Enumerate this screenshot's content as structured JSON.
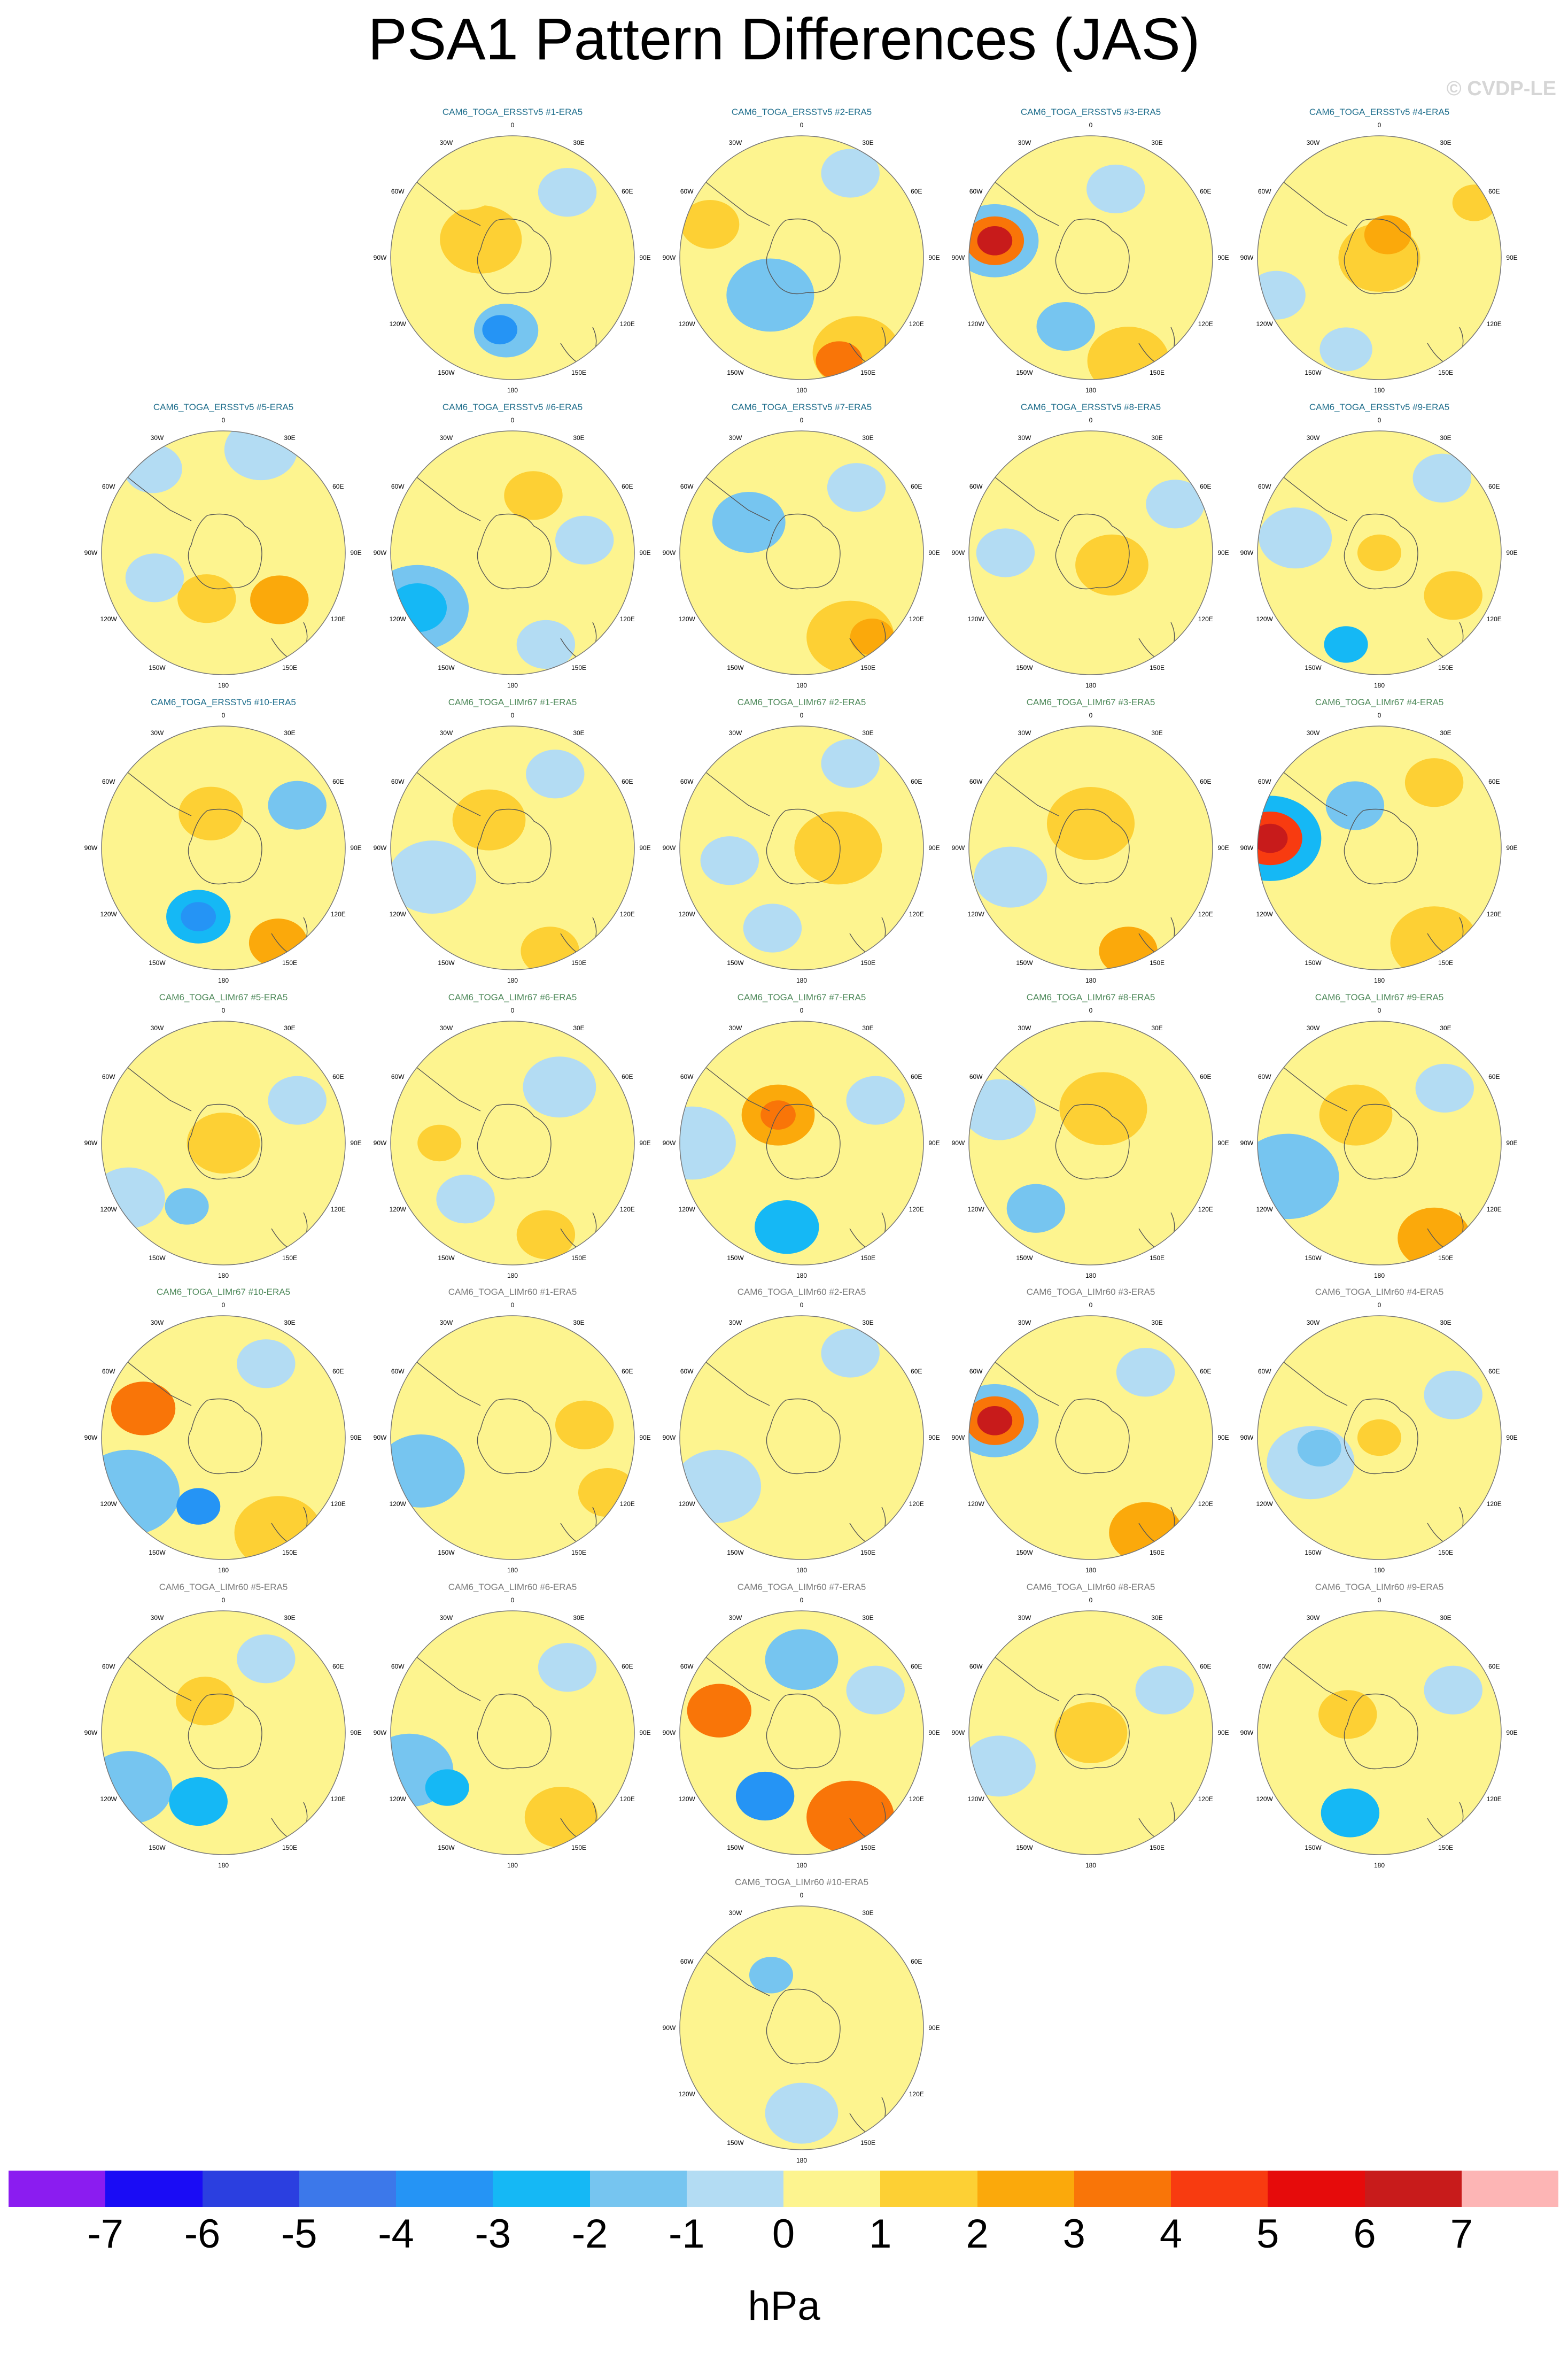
{
  "title": "PSA1 Pattern Differences (JAS)",
  "credit": "© CVDP-LE",
  "panels": [
    {
      "label": "CAM6_TOGA_ERSSTv5 #1-ERA5",
      "group": "ERSSTv5"
    },
    {
      "label": "CAM6_TOGA_ERSSTv5 #2-ERA5",
      "group": "ERSSTv5"
    },
    {
      "label": "CAM6_TOGA_ERSSTv5 #3-ERA5",
      "group": "ERSSTv5"
    },
    {
      "label": "CAM6_TOGA_ERSSTv5 #4-ERA5",
      "group": "ERSSTv5"
    },
    {
      "label": "CAM6_TOGA_ERSSTv5 #5-ERA5",
      "group": "ERSSTv5"
    },
    {
      "label": "CAM6_TOGA_ERSSTv5 #6-ERA5",
      "group": "ERSSTv5"
    },
    {
      "label": "CAM6_TOGA_ERSSTv5 #7-ERA5",
      "group": "ERSSTv5"
    },
    {
      "label": "CAM6_TOGA_ERSSTv5 #8-ERA5",
      "group": "ERSSTv5"
    },
    {
      "label": "CAM6_TOGA_ERSSTv5 #9-ERA5",
      "group": "ERSSTv5"
    },
    {
      "label": "CAM6_TOGA_ERSSTv5 #10-ERA5",
      "group": "ERSSTv5"
    },
    {
      "label": "CAM6_TOGA_LIMr67 #1-ERA5",
      "group": "LIMr67"
    },
    {
      "label": "CAM6_TOGA_LIMr67 #2-ERA5",
      "group": "LIMr67"
    },
    {
      "label": "CAM6_TOGA_LIMr67 #3-ERA5",
      "group": "LIMr67"
    },
    {
      "label": "CAM6_TOGA_LIMr67 #4-ERA5",
      "group": "LIMr67"
    },
    {
      "label": "CAM6_TOGA_LIMr67 #5-ERA5",
      "group": "LIMr67"
    },
    {
      "label": "CAM6_TOGA_LIMr67 #6-ERA5",
      "group": "LIMr67"
    },
    {
      "label": "CAM6_TOGA_LIMr67 #7-ERA5",
      "group": "LIMr67"
    },
    {
      "label": "CAM6_TOGA_LIMr67 #8-ERA5",
      "group": "LIMr67"
    },
    {
      "label": "CAM6_TOGA_LIMr67 #9-ERA5",
      "group": "LIMr67"
    },
    {
      "label": "CAM6_TOGA_LIMr67 #10-ERA5",
      "group": "LIMr67"
    },
    {
      "label": "CAM6_TOGA_LIMr60 #1-ERA5",
      "group": "LIMr60"
    },
    {
      "label": "CAM6_TOGA_LIMr60 #2-ERA5",
      "group": "LIMr60"
    },
    {
      "label": "CAM6_TOGA_LIMr60 #3-ERA5",
      "group": "LIMr60"
    },
    {
      "label": "CAM6_TOGA_LIMr60 #4-ERA5",
      "group": "LIMr60"
    },
    {
      "label": "CAM6_TOGA_LIMr60 #5-ERA5",
      "group": "LIMr60"
    },
    {
      "label": "CAM6_TOGA_LIMr60 #6-ERA5",
      "group": "LIMr60"
    },
    {
      "label": "CAM6_TOGA_LIMr60 #7-ERA5",
      "group": "LIMr60"
    },
    {
      "label": "CAM6_TOGA_LIMr60 #8-ERA5",
      "group": "LIMr60"
    },
    {
      "label": "CAM6_TOGA_LIMr60 #9-ERA5",
      "group": "LIMr60"
    },
    {
      "label": "CAM6_TOGA_LIMr60 #10-ERA5",
      "group": "LIMr60"
    }
  ],
  "group_title_colors": {
    "ERSSTv5": "#1f6e8c",
    "LIMr67": "#4f8a5b",
    "LIMr60": "#7a7a7a"
  },
  "longitude_labels": [
    "0",
    "30E",
    "60E",
    "90E",
    "120E",
    "150E",
    "180",
    "150W",
    "120W",
    "90W",
    "60W",
    "30W"
  ],
  "colorbar": {
    "ticks": [
      "-7",
      "-6",
      "-5",
      "-4",
      "-3",
      "-2",
      "-1",
      "0",
      "1",
      "2",
      "3",
      "4",
      "5",
      "6",
      "7"
    ],
    "colors": [
      "#8b1cf0",
      "#1a0cf5",
      "#2b3fe0",
      "#3c78ea",
      "#2594f5",
      "#15b8f5",
      "#76c5f0",
      "#b3dcf3",
      "#fdf48f",
      "#fdd034",
      "#fba90b",
      "#f97508",
      "#f83b10",
      "#e60b0b",
      "#c81b1b",
      "#fdb5b5"
    ],
    "unit": "hPa"
  }
}
